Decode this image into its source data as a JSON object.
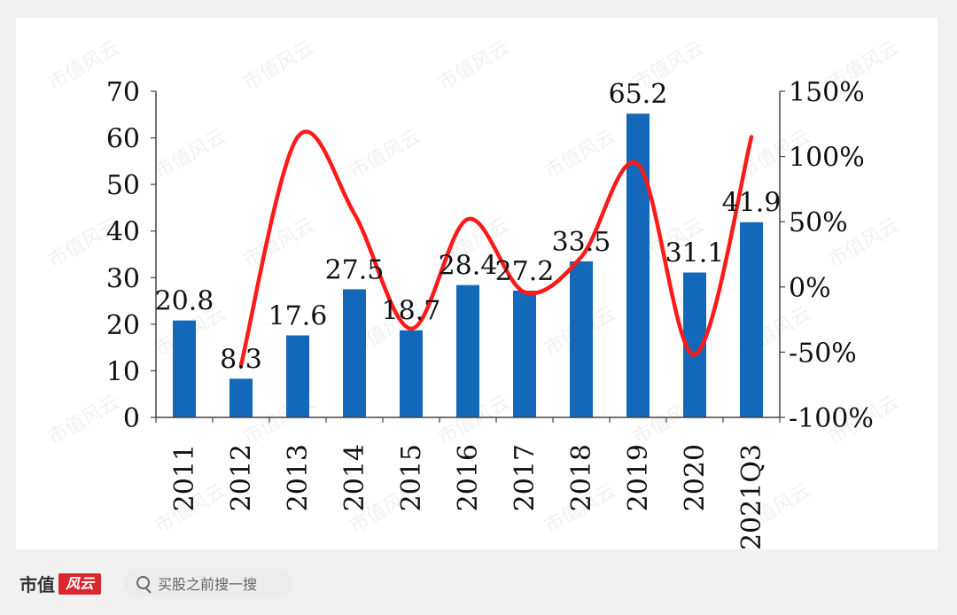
{
  "chart_data": {
    "type": "bar",
    "categories": [
      "2011",
      "2012",
      "2013",
      "2014",
      "2015",
      "2016",
      "2017",
      "2018",
      "2019",
      "2020",
      "2021Q3"
    ],
    "series": [
      {
        "values": [
          20.8,
          8.3,
          17.6,
          27.5,
          18.7,
          28.4,
          27.2,
          33.5,
          65.2,
          31.1,
          41.9
        ],
        "color": "#1468b9"
      },
      {
        "type": "line",
        "axis": "right",
        "values": [
          null,
          -60,
          115,
          56,
          -32,
          52,
          -4,
          23,
          94,
          -52,
          115
        ],
        "color": "#ff1a1a"
      }
    ],
    "data_labels": [
      "20.8",
      "8.3",
      "17.6",
      "27.5",
      "18.7",
      "28.4",
      "27.2",
      "33.5",
      "65.2",
      "31.1",
      "41.9"
    ],
    "y_left": {
      "ticks": [
        "0",
        "10",
        "20",
        "30",
        "40",
        "50",
        "60",
        "70"
      ],
      "range": [
        0,
        70
      ]
    },
    "y_right": {
      "ticks": [
        "-100%",
        "-50%",
        "0%",
        "50%",
        "100%",
        "150%"
      ],
      "range": [
        -100,
        150
      ]
    },
    "grid": false
  },
  "footer": {
    "brand": "市值",
    "brand_logo": "风云",
    "search_placeholder": "买股之前搜一搜",
    "search_icon": "search-icon"
  },
  "watermark": "市值风云"
}
